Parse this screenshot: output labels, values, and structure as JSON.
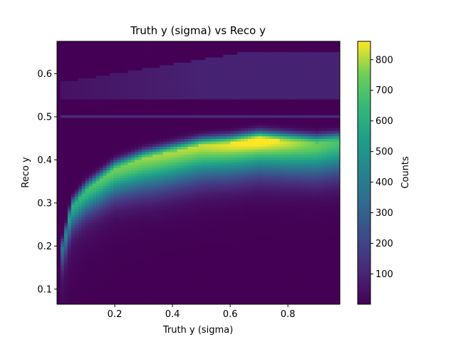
{
  "chart_data": {
    "type": "heatmap",
    "title": "Truth y (sigma) vs Reco y",
    "xlabel": "Truth y (sigma)",
    "ylabel": "Reco y",
    "xlim": [
      0.0,
      0.98
    ],
    "ylim": [
      0.065,
      0.675
    ],
    "xticks": [
      "0.2",
      "0.4",
      "0.6",
      "0.8"
    ],
    "yticks": [
      "0.1",
      "0.2",
      "0.3",
      "0.4",
      "0.5",
      "0.6"
    ],
    "colorbar": {
      "label": "Counts",
      "range": [
        1,
        860
      ],
      "ticks": [
        "100",
        "200",
        "300",
        "400",
        "500",
        "600",
        "700",
        "800"
      ],
      "colormap": "viridis"
    },
    "ridge": {
      "description_points_x": [
        0.02,
        0.05,
        0.1,
        0.2,
        0.3,
        0.4,
        0.5,
        0.6,
        0.7,
        0.8,
        0.9,
        0.97
      ],
      "reco_y": [
        0.2,
        0.29,
        0.33,
        0.38,
        0.405,
        0.42,
        0.435,
        0.44,
        0.45,
        0.445,
        0.44,
        0.445
      ],
      "peak_counts": [
        300,
        520,
        600,
        680,
        720,
        740,
        760,
        800,
        850,
        780,
        700,
        650
      ]
    },
    "secondary_band": {
      "reco_y_start": 0.54,
      "reco_y_end": 0.65,
      "counts": 90
    },
    "line_artifact": {
      "reco_y": 0.5,
      "counts": 120
    }
  }
}
